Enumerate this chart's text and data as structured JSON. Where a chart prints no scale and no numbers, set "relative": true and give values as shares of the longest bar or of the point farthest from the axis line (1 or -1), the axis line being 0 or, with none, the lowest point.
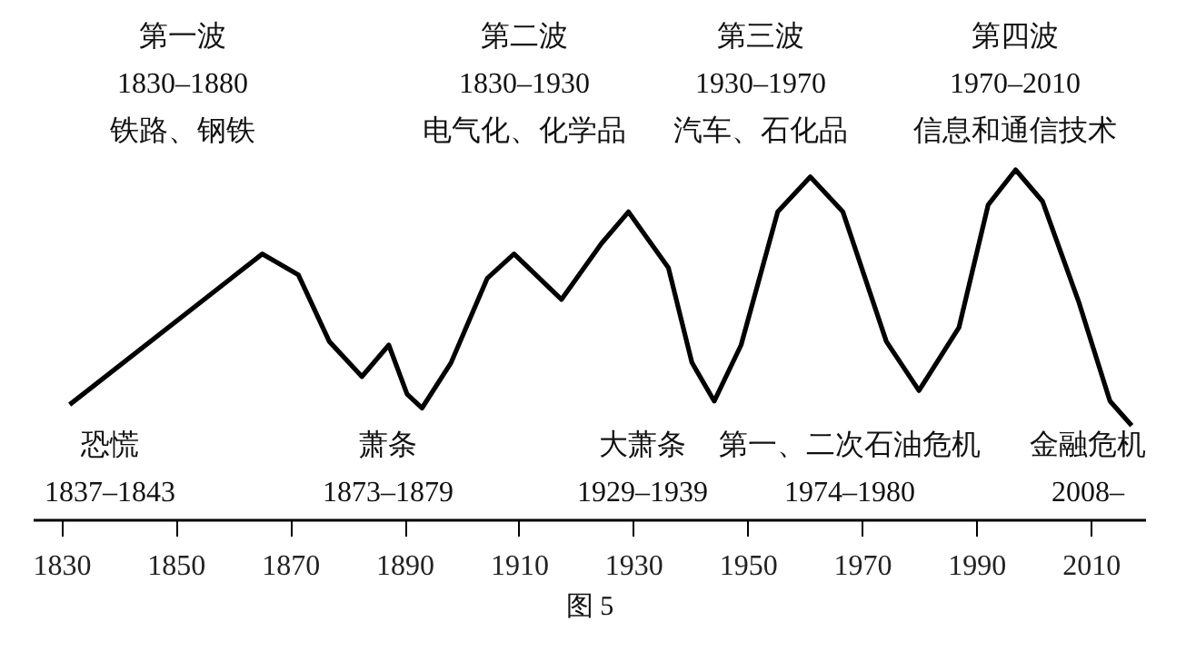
{
  "chart_data": {
    "type": "line",
    "relative": true,
    "x": [
      1831.3,
      1865,
      1871.3,
      1876.7,
      1882.4,
      1887.1,
      1890.3,
      1892.9,
      1898,
      1904.3,
      1909,
      1917.3,
      1924.3,
      1929,
      1936,
      1940.1,
      1944,
      1948.7,
      1955.1,
      1960.8,
      1966.5,
      1974.1,
      1979.8,
      1986.8,
      1991.9,
      1996.7,
      2001.4,
      2007.8,
      2013.2,
      2017
    ],
    "series": [
      {
        "color": "#000000",
        "values": [
          0.33,
          0.76,
          0.7,
          0.51,
          0.41,
          0.5,
          0.36,
          0.32,
          0.45,
          0.69,
          0.76,
          0.63,
          0.79,
          0.88,
          0.72,
          0.45,
          0.34,
          0.5,
          0.88,
          0.98,
          0.88,
          0.51,
          0.37,
          0.55,
          0.9,
          1.0,
          0.91,
          0.62,
          0.34,
          0.27
        ]
      }
    ],
    "xlim": [
      1825,
      2019.5
    ],
    "xticks": [
      1830,
      1850,
      1870,
      1890,
      1910,
      1930,
      1950,
      1970,
      1990,
      2010
    ],
    "tick_labels": "x",
    "grid": false,
    "marker": "none",
    "line_style": "solid",
    "annotations": [
      "第一波\n1830–1880\n铁路、钢铁",
      "第二波\n1830–1930\n电气化、化学品",
      "第三波\n1930–1970\n汽车、石化品",
      "第四波\n1970–2010\n信息和通信技术",
      "恐慌\n1837–1843",
      "萧条\n1873–1879",
      "大萧条\n1929–1939",
      "第一、二次石油危机\n1974–1980",
      "金融危机\n2008–",
      "图 5"
    ]
  }
}
